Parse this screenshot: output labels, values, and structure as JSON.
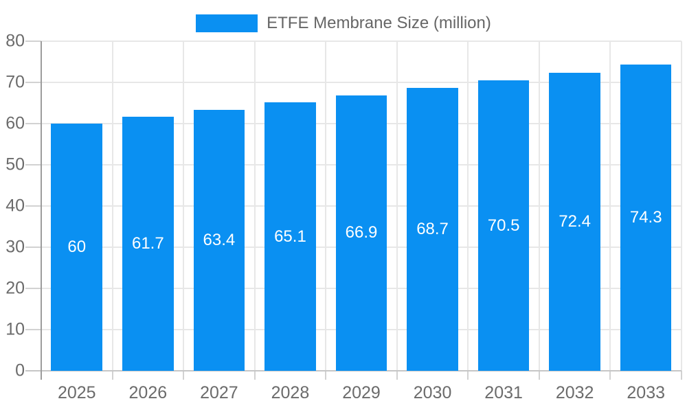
{
  "chart_data": {
    "type": "bar",
    "title": "ETFE Membrane Size (million)",
    "legend_position": "top",
    "categories": [
      "2025",
      "2026",
      "2027",
      "2028",
      "2029",
      "2030",
      "2031",
      "2032",
      "2033"
    ],
    "series": [
      {
        "name": "ETFE Membrane Size (million)",
        "color": "#0a90f2",
        "values": [
          60,
          61.7,
          63.4,
          65.1,
          66.9,
          68.7,
          70.5,
          72.4,
          74.3
        ],
        "value_labels": [
          "60",
          "61.7",
          "63.4",
          "65.1",
          "66.9",
          "68.7",
          "70.5",
          "72.4",
          "74.3"
        ]
      }
    ],
    "xlabel": "",
    "ylabel": "",
    "ylim": [
      0,
      80
    ],
    "ytick_step": 10,
    "ytick_labels": [
      "0",
      "10",
      "20",
      "30",
      "40",
      "50",
      "60",
      "70",
      "80"
    ],
    "grid": true,
    "bar_label_color": "#ffffff",
    "axis_label_color": "#6b6b6b"
  }
}
